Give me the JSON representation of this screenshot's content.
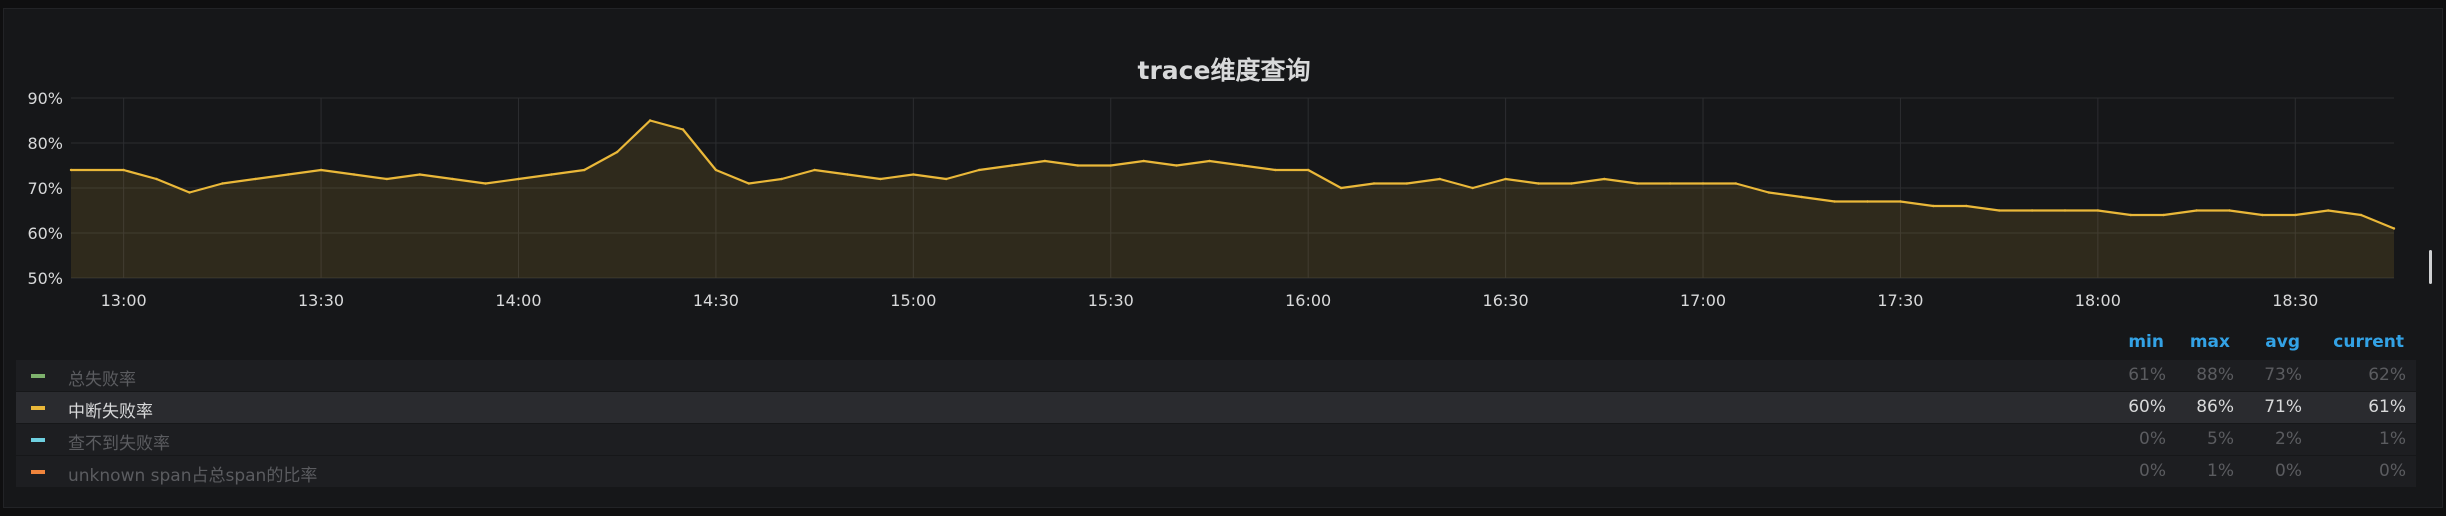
{
  "panel": {
    "title": "trace维度查询"
  },
  "chart_data": {
    "type": "area",
    "title": "trace维度查询",
    "ylim": [
      50,
      90
    ],
    "y_ticks": [
      "50%",
      "60%",
      "70%",
      "80%",
      "90%"
    ],
    "y_tick_values": [
      50,
      60,
      70,
      80,
      90
    ],
    "x_ticks": [
      "13:00",
      "13:30",
      "14:00",
      "14:30",
      "15:00",
      "15:30",
      "16:00",
      "16:30",
      "17:00",
      "17:30",
      "18:00",
      "18:30"
    ],
    "x_range": [
      "12:52",
      "18:45"
    ],
    "grid": true,
    "series": [
      {
        "name": "中断失败率",
        "color": "#eab839",
        "x": [
          "12:52",
          "13:00",
          "13:05",
          "13:10",
          "13:15",
          "13:20",
          "13:25",
          "13:30",
          "13:35",
          "13:40",
          "13:45",
          "13:50",
          "13:55",
          "14:00",
          "14:05",
          "14:10",
          "14:15",
          "14:20",
          "14:25",
          "14:30",
          "14:35",
          "14:40",
          "14:45",
          "14:50",
          "14:55",
          "15:00",
          "15:05",
          "15:10",
          "15:15",
          "15:20",
          "15:25",
          "15:30",
          "15:35",
          "15:40",
          "15:45",
          "15:50",
          "15:55",
          "16:00",
          "16:05",
          "16:10",
          "16:15",
          "16:20",
          "16:25",
          "16:30",
          "16:35",
          "16:40",
          "16:45",
          "16:50",
          "16:55",
          "17:00",
          "17:05",
          "17:10",
          "17:15",
          "17:20",
          "17:25",
          "17:30",
          "17:35",
          "17:40",
          "17:45",
          "17:50",
          "17:55",
          "18:00",
          "18:05",
          "18:10",
          "18:15",
          "18:20",
          "18:25",
          "18:30",
          "18:35",
          "18:40",
          "18:45"
        ],
        "values": [
          74,
          74,
          72,
          69,
          71,
          72,
          73,
          74,
          73,
          72,
          73,
          72,
          71,
          72,
          73,
          74,
          78,
          85,
          83,
          74,
          71,
          72,
          74,
          73,
          72,
          73,
          72,
          74,
          75,
          76,
          75,
          75,
          76,
          75,
          76,
          75,
          74,
          74,
          70,
          71,
          71,
          72,
          70,
          72,
          71,
          71,
          72,
          71,
          71,
          71,
          71,
          69,
          68,
          67,
          67,
          67,
          66,
          66,
          65,
          65,
          65,
          65,
          64,
          64,
          65,
          65,
          64,
          64,
          65,
          64,
          61
        ]
      }
    ],
    "legend": {
      "placement": "bottom",
      "columns": [
        "min",
        "max",
        "avg",
        "current"
      ],
      "rows": [
        {
          "name": "总失败率",
          "color": "#7eb26d",
          "min": "61%",
          "max": "88%",
          "avg": "73%",
          "current": "62%",
          "hidden": true
        },
        {
          "name": "中断失败率",
          "color": "#eab839",
          "min": "60%",
          "max": "86%",
          "avg": "71%",
          "current": "61%",
          "hidden": false
        },
        {
          "name": "查不到失败率",
          "color": "#6ed0e0",
          "min": "0%",
          "max": "5%",
          "avg": "2%",
          "current": "1%",
          "hidden": true
        },
        {
          "name": "unknown span占总span的比率",
          "color": "#ef843c",
          "min": "0%",
          "max": "1%",
          "avg": "0%",
          "current": "0%",
          "hidden": true
        }
      ]
    }
  }
}
